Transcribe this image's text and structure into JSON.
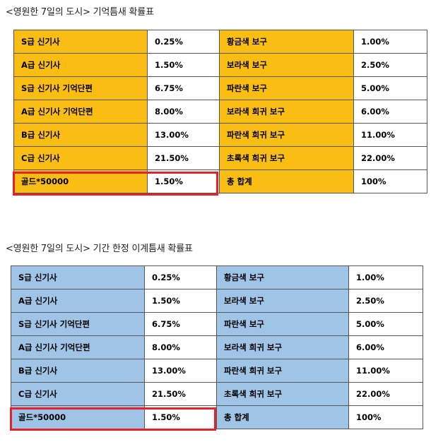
{
  "tables": [
    {
      "title": "<영원한 7일의 도시> 기억틈새 확률표",
      "rows": [
        [
          "S급 신기사",
          "0.25%",
          "황금색 보구",
          "1.00%"
        ],
        [
          "A급 신기사",
          "1.50%",
          "보라색 보구",
          "2.50%"
        ],
        [
          "S급 신기사 기억단편",
          "6.75%",
          "파란색 보구",
          "5.00%"
        ],
        [
          "A급 신기사 기억단편",
          "8.00%",
          "보라색 희귀 보구",
          "6.00%"
        ],
        [
          "B급 신기사",
          "13.00%",
          "파란색 희귀 보구",
          "11.00%"
        ],
        [
          "C급 신기사",
          "21.50%",
          "초록색 희귀 보구",
          "22.00%"
        ],
        [
          "골드*50000",
          "1.50%",
          "총 합계",
          "100%"
        ]
      ]
    },
    {
      "title": "<영원한 7일의 도시> 기간 한정 이계틈새 확률표",
      "rows": [
        [
          "S급 신기사",
          "0.25%",
          "황금색 보구",
          "1.00%"
        ],
        [
          "A급 신기사",
          "1.50%",
          "보라색 보구",
          "2.50%"
        ],
        [
          "S급 신기사 기억단편",
          "6.75%",
          "파란색 보구",
          "5.00%"
        ],
        [
          "A급 신기사 기억단편",
          "8.00%",
          "보라색 희귀 보구",
          "6.00%"
        ],
        [
          "B급 신기사",
          "13.00%",
          "파란색 희귀 보구",
          "11.00%"
        ],
        [
          "C급 신기사",
          "21.50%",
          "초록색 희귀 보구",
          "22.00%"
        ],
        [
          "골드*50000",
          "1.50%",
          "총 합계",
          "100%"
        ]
      ]
    }
  ],
  "colors": {
    "table1_label_bg": "#f9bd14",
    "table2_label_bg": "#9fc4e6",
    "highlight_border": "#e0232f"
  }
}
